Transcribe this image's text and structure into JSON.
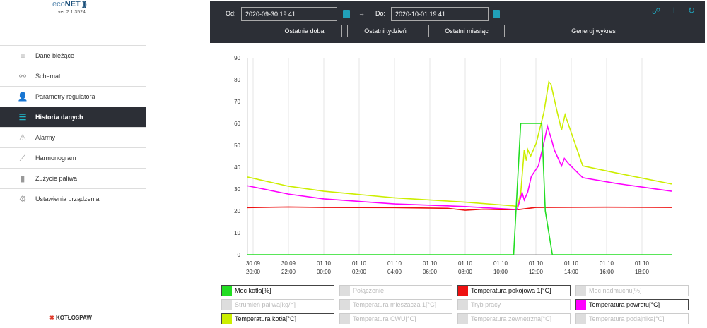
{
  "app": {
    "logo_prefix": "eco",
    "logo_bold": "NET",
    "version": "ver 2.1.3524",
    "brand": "KOTŁOSPAW"
  },
  "sidebar": {
    "items": [
      {
        "label": "Dane bieżące",
        "icon": "house-list-icon",
        "glyph": "≡"
      },
      {
        "label": "Schemat",
        "icon": "schema-icon",
        "glyph": "⚯"
      },
      {
        "label": "Parametry regulatora",
        "icon": "user-params-icon",
        "glyph": "👤"
      },
      {
        "label": "Historia danych",
        "icon": "history-icon",
        "glyph": "☰",
        "active": true
      },
      {
        "label": "Alarmy",
        "icon": "warning-icon",
        "glyph": "⚠"
      },
      {
        "label": "Harmonogram",
        "icon": "schedule-chart-icon",
        "glyph": "⟋"
      },
      {
        "label": "Zużycie paliwa",
        "icon": "fuel-bars-icon",
        "glyph": "▮"
      },
      {
        "label": "Ustawienia urządzenia",
        "icon": "gears-icon",
        "glyph": "⚙"
      }
    ]
  },
  "toolbar": {
    "from_label": "Od:",
    "from_value": "2020-09-30 19:41",
    "arrow": "→",
    "to_label": "Do:",
    "to_value": "2020-10-01 19:41",
    "btn_day": "Ostatnia doba",
    "btn_week": "Ostatni tydzień",
    "btn_month": "Ostatni miesiąc",
    "btn_generate": "Generuj wykres"
  },
  "legend": [
    {
      "label": "Moc kotła[%]",
      "color": "#22dd22",
      "on": true
    },
    {
      "label": "Połączenie",
      "on": false
    },
    {
      "label": "Temperatura pokojowa 1[°C]",
      "color": "#ee1111",
      "on": true
    },
    {
      "label": "Moc nadmuchu[%]",
      "on": false
    },
    {
      "label": "Strumień paliwa[kg/h]",
      "on": false
    },
    {
      "label": "Temperatura mieszacza 1[°C]",
      "on": false
    },
    {
      "label": "Tryb pracy",
      "on": false
    },
    {
      "label": "Temperatura powrotu[°C]",
      "color": "#ff00ff",
      "on": true
    },
    {
      "label": "Temperatura kotła[°C]",
      "color": "#ccee00",
      "on": true
    },
    {
      "label": "Temperatura CWU[°C]",
      "on": false
    },
    {
      "label": "Temperatura zewnętrzna[°C]",
      "on": false
    },
    {
      "label": "Temperatura podajnika[°C]",
      "on": false
    }
  ],
  "chart_data": {
    "type": "line",
    "x_unit": "hours since 2020-09-30 00:00",
    "xlim": [
      19.68,
      43.68
    ],
    "ylim": [
      0,
      90
    ],
    "yticks": [
      0,
      10,
      20,
      30,
      40,
      50,
      60,
      70,
      80,
      90
    ],
    "xticks": [
      {
        "x": 20,
        "l1": "30.09",
        "l2": "20:00"
      },
      {
        "x": 22,
        "l1": "30.09",
        "l2": "22:00"
      },
      {
        "x": 24,
        "l1": "01.10",
        "l2": "00:00"
      },
      {
        "x": 26,
        "l1": "01.10",
        "l2": "02:00"
      },
      {
        "x": 28,
        "l1": "01.10",
        "l2": "04:00"
      },
      {
        "x": 30,
        "l1": "01.10",
        "l2": "06:00"
      },
      {
        "x": 32,
        "l1": "01.10",
        "l2": "08:00"
      },
      {
        "x": 34,
        "l1": "01.10",
        "l2": "10:00"
      },
      {
        "x": 36,
        "l1": "01.10",
        "l2": "12:00"
      },
      {
        "x": 38,
        "l1": "01.10",
        "l2": "14:00"
      },
      {
        "x": 40,
        "l1": "01.10",
        "l2": "16:00"
      },
      {
        "x": 42,
        "l1": "01.10",
        "l2": "18:00"
      }
    ],
    "series": [
      {
        "name": "Temperatura pokojowa 1[°C]",
        "color": "#ee1111",
        "points": [
          [
            19.68,
            21.5
          ],
          [
            22,
            21.8
          ],
          [
            24,
            21.6
          ],
          [
            28,
            21.5
          ],
          [
            31,
            21.2
          ],
          [
            32,
            20.3
          ],
          [
            33,
            20.8
          ],
          [
            34,
            20.6
          ],
          [
            35,
            20.6
          ],
          [
            36,
            21.6
          ],
          [
            40,
            21.7
          ],
          [
            43.68,
            21.6
          ]
        ]
      },
      {
        "name": "Temperatura kotła[°C]",
        "color": "#ccee00",
        "points": [
          [
            19.68,
            35.5
          ],
          [
            22,
            31.3
          ],
          [
            24,
            29
          ],
          [
            28,
            26
          ],
          [
            32,
            24
          ],
          [
            34.74,
            22.3
          ],
          [
            34.94,
            22
          ],
          [
            35.14,
            28
          ],
          [
            35.34,
            48
          ],
          [
            35.46,
            43
          ],
          [
            35.54,
            48
          ],
          [
            35.7,
            45
          ],
          [
            36.02,
            51
          ],
          [
            36.45,
            65
          ],
          [
            36.73,
            79
          ],
          [
            36.85,
            78
          ],
          [
            37.21,
            65
          ],
          [
            37.45,
            57
          ],
          [
            37.65,
            64
          ],
          [
            38.65,
            40.6
          ],
          [
            40.52,
            37.4
          ],
          [
            43.68,
            32.3
          ]
        ]
      },
      {
        "name": "Temperatura powrotu[°C]",
        "color": "#ff00ff",
        "points": [
          [
            19.68,
            31.5
          ],
          [
            22,
            27.7
          ],
          [
            24,
            25.5
          ],
          [
            28,
            23.2
          ],
          [
            32,
            22
          ],
          [
            34.94,
            20.6
          ],
          [
            35.22,
            28.4
          ],
          [
            35.34,
            25
          ],
          [
            35.54,
            28.7
          ],
          [
            35.74,
            35.8
          ],
          [
            36.14,
            40.6
          ],
          [
            36.45,
            51
          ],
          [
            36.65,
            58.7
          ],
          [
            36.85,
            53.5
          ],
          [
            37.05,
            47.7
          ],
          [
            37.45,
            40.6
          ],
          [
            37.61,
            44
          ],
          [
            37.85,
            41.6
          ],
          [
            38.65,
            35.2
          ],
          [
            40.52,
            32.6
          ],
          [
            43.68,
            29
          ]
        ]
      },
      {
        "name": "Moc kotła[%]",
        "color": "#22dd22",
        "points": [
          [
            19.68,
            0
          ],
          [
            34.74,
            0
          ],
          [
            35.14,
            60
          ],
          [
            36.33,
            60
          ],
          [
            36.53,
            20
          ],
          [
            36.93,
            0
          ],
          [
            43.68,
            0
          ]
        ]
      }
    ]
  }
}
